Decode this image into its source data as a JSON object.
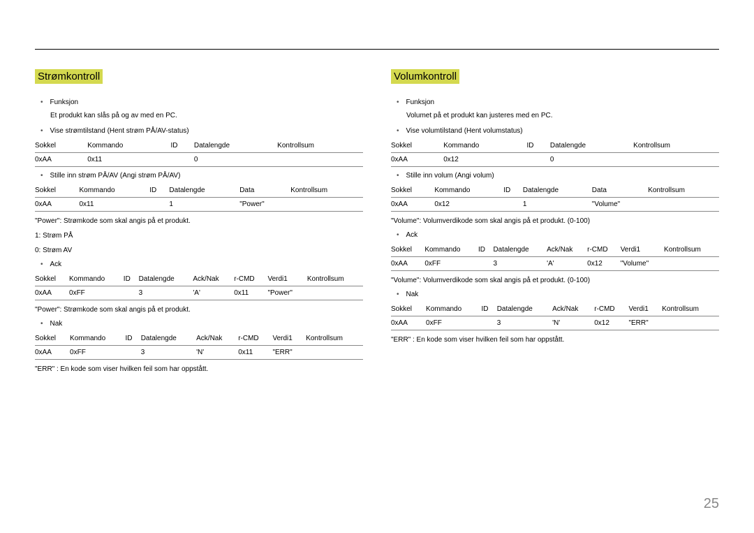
{
  "page_number": "25",
  "left": {
    "title": "Strømkontroll",
    "b1": "Funksjon",
    "b1_sub": "Et produkt kan slås på og av med en PC.",
    "b2": "Vise strømtilstand (Hent strøm PÅ/AV-status)",
    "t1_h": [
      "Sokkel",
      "Kommando",
      "ID",
      "Datalengde",
      "Kontrollsum"
    ],
    "t1_r": [
      "0xAA",
      "0x11",
      "",
      "0",
      ""
    ],
    "b3": "Stille inn strøm PÅ/AV (Angi strøm PÅ/AV)",
    "t2_h": [
      "Sokkel",
      "Kommando",
      "ID",
      "Datalengde",
      "Data",
      "Kontrollsum"
    ],
    "t2_r": [
      "0xAA",
      "0x11",
      "",
      "1",
      "\"Power\"",
      ""
    ],
    "p1": "\"Power\": Strømkode som skal angis på et produkt.",
    "p2": "1: Strøm PÅ",
    "p3": "0: Strøm AV",
    "b4": "Ack",
    "t3_h": [
      "Sokkel",
      "Kommando",
      "ID",
      "Datalengde",
      "Ack/Nak",
      "r-CMD",
      "Verdi1",
      "Kontrollsum"
    ],
    "t3_r": [
      "0xAA",
      "0xFF",
      "",
      "3",
      "'A'",
      "0x11",
      "\"Power\"",
      ""
    ],
    "p4": "\"Power\": Strømkode som skal angis på et produkt.",
    "b5": "Nak",
    "t4_h": [
      "Sokkel",
      "Kommando",
      "ID",
      "Datalengde",
      "Ack/Nak",
      "r-CMD",
      "Verdi1",
      "Kontrollsum"
    ],
    "t4_r": [
      "0xAA",
      "0xFF",
      "",
      "3",
      "'N'",
      "0x11",
      "\"ERR\"",
      ""
    ],
    "p5": "\"ERR\" : En kode som viser hvilken feil som har oppstått."
  },
  "right": {
    "title": "Volumkontroll",
    "b1": "Funksjon",
    "b1_sub": "Volumet på et produkt kan justeres med en PC.",
    "b2": "Vise volumtilstand (Hent volumstatus)",
    "t1_h": [
      "Sokkel",
      "Kommando",
      "ID",
      "Datalengde",
      "Kontrollsum"
    ],
    "t1_r": [
      "0xAA",
      "0x12",
      "",
      "0",
      ""
    ],
    "b3": "Stille inn volum (Angi volum)",
    "t2_h": [
      "Sokkel",
      "Kommando",
      "ID",
      "Datalengde",
      "Data",
      "Kontrollsum"
    ],
    "t2_r": [
      "0xAA",
      "0x12",
      "",
      "1",
      "\"Volume\"",
      ""
    ],
    "p1": "\"Volume\": Volumverdikode som skal angis på et produkt. (0-100)",
    "b4": "Ack",
    "t3_h": [
      "Sokkel",
      "Kommando",
      "ID",
      "Datalengde",
      "Ack/Nak",
      "r-CMD",
      "Verdi1",
      "Kontrollsum"
    ],
    "t3_r": [
      "0xAA",
      "0xFF",
      "",
      "3",
      "'A'",
      "0x12",
      "\"Volume\"",
      ""
    ],
    "p4": "\"Volume\": Volumverdikode som skal angis på et produkt. (0-100)",
    "b5": "Nak",
    "t4_h": [
      "Sokkel",
      "Kommando",
      "ID",
      "Datalengde",
      "Ack/Nak",
      "r-CMD",
      "Verdi1",
      "Kontrollsum"
    ],
    "t4_r": [
      "0xAA",
      "0xFF",
      "",
      "3",
      "'N'",
      "0x12",
      "\"ERR\"",
      ""
    ],
    "p5": "\"ERR\" : En kode som viser hvilken feil som har oppstått."
  }
}
